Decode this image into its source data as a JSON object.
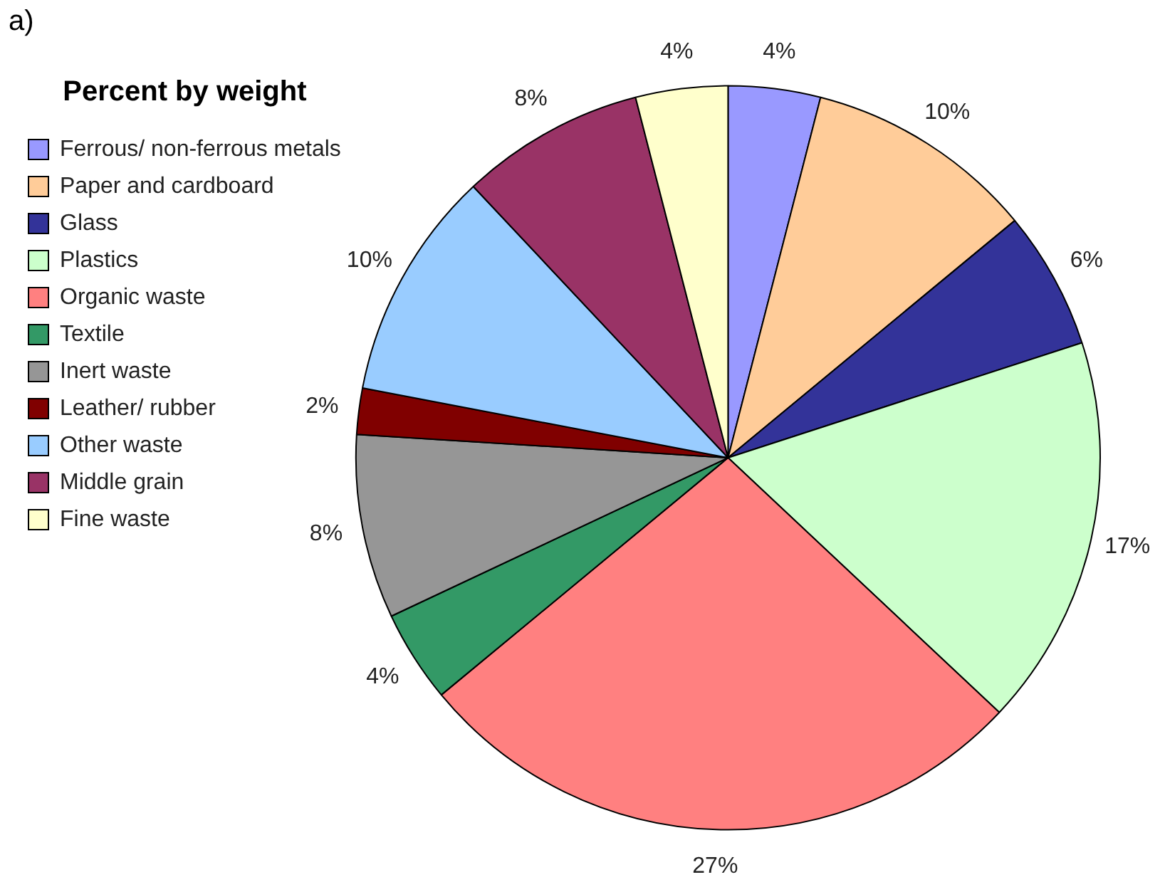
{
  "chart_data": {
    "type": "pie",
    "legend_title": "Percent by weight",
    "annotations": [
      "a)"
    ],
    "legend": "left",
    "categories": [
      "Ferrous/ non-ferrous metals",
      "Paper and cardboard",
      "Glass",
      "Plastics",
      "Organic waste",
      "Textile",
      "Inert waste",
      "Leather/ rubber",
      "Other waste",
      "Middle grain",
      "Fine waste"
    ],
    "values": [
      4,
      10,
      6,
      17,
      27,
      4,
      8,
      2,
      10,
      8,
      4
    ],
    "value_labels": [
      "4%",
      "10%",
      "6%",
      "17%",
      "27%",
      "4%",
      "8%",
      "2%",
      "10%",
      "8%",
      "4%"
    ],
    "colors": [
      "#9999ff",
      "#ffcc99",
      "#333399",
      "#ccffcc",
      "#ff8080",
      "#339966",
      "#969696",
      "#800000",
      "#99ccff",
      "#993366",
      "#ffffcc"
    ]
  }
}
